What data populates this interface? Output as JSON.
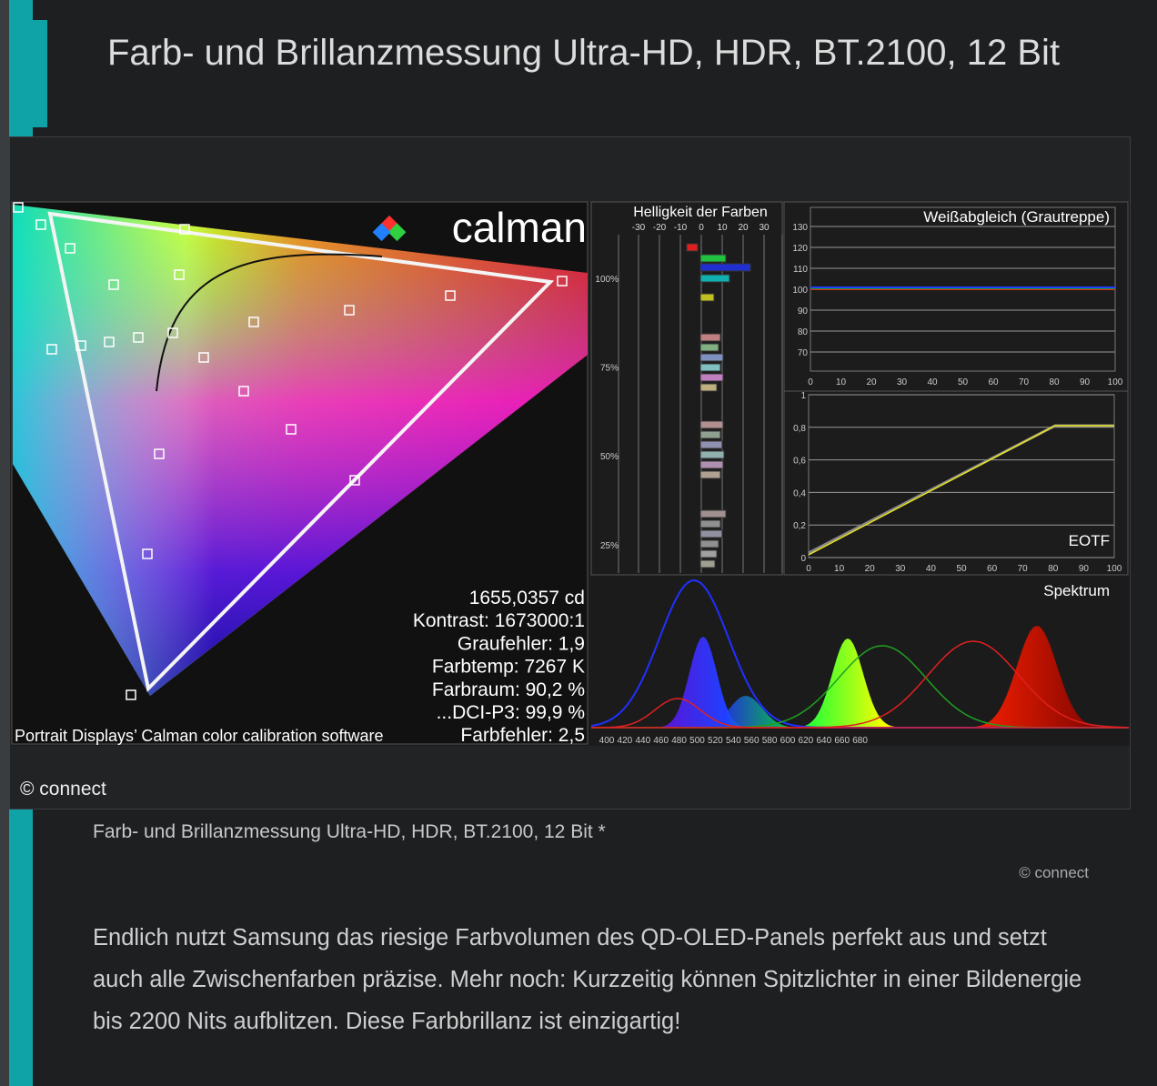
{
  "header": {
    "title": "Farb- und Brillanzmessung Ultra-HD, HDR, BT.2100, 12 Bit"
  },
  "figure": {
    "logo": "calman",
    "stats": [
      "1655,0357 cd",
      "Kontrast: 1673000:1",
      "Graufehler: 1,9",
      "Farbtemp: 7267 K",
      "Farbraum: 90,2 %",
      "...DCI-P3: 99,9 %",
      "Farbfehler: 2,5"
    ],
    "software_note": "Portrait Displays’ Calman color calibration software",
    "brightness": {
      "title": "Helligkeit der Farben",
      "xticks": [
        -30,
        -20,
        -10,
        0,
        10,
        20,
        30
      ],
      "yticks": [
        "100%",
        "75%",
        "50%",
        "25%"
      ]
    },
    "white_balance": {
      "title": "Weißabgleich (Grautreppe)",
      "yticks": [
        130,
        120,
        110,
        100,
        90,
        80,
        70
      ],
      "xticks": [
        0,
        10,
        20,
        30,
        40,
        50,
        60,
        70,
        80,
        90,
        100
      ]
    },
    "eotf": {
      "title": "EOTF",
      "yticks": [
        "1",
        "0,8",
        "0,6",
        "0,4",
        "0,2",
        "0"
      ],
      "xticks": [
        0,
        10,
        20,
        30,
        40,
        50,
        60,
        70,
        80,
        90,
        100
      ]
    },
    "spectrum": {
      "title": "Spektrum",
      "xticks": [
        400,
        420,
        440,
        460,
        480,
        500,
        520,
        540,
        560,
        580,
        600,
        620,
        640,
        660,
        680
      ]
    },
    "credit": "© connect"
  },
  "caption": {
    "text": "Farb- und Brillanzmessung Ultra-HD, HDR, BT.2100, 12 Bit *",
    "credit": "© connect"
  },
  "body": {
    "paragraph": "Endlich nutzt Samsung das riesige Farbvolumen des QD-OLED-Panels perfekt aus und setzt auch alle Zwischenfarben präzise. Mehr noch: Kurzzeitig können Spitzlichter in einer Bildenergie bis 2200 Nits aufblitzen. Diese Farbbrillanz ist einzigartig!"
  }
}
